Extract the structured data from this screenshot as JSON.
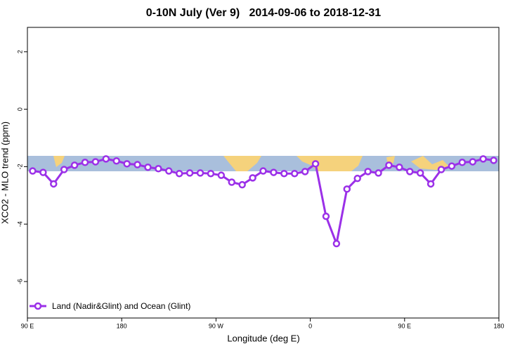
{
  "chart_data": {
    "type": "line",
    "title": "0-10N July (Ver 9)   2014-09-06 to 2018-12-31",
    "x_label": "Longitude (deg E)",
    "y_label": "XCO2 - MLO trend (ppm)",
    "x": [
      95,
      105,
      115,
      125,
      135,
      145,
      155,
      165,
      175,
      185,
      195,
      205,
      215,
      225,
      235,
      245,
      255,
      265,
      275,
      285,
      295,
      305,
      315,
      325,
      335,
      345,
      355,
      365,
      375,
      385,
      395,
      405,
      415,
      425,
      435,
      445,
      455,
      465,
      475,
      485,
      495,
      505,
      515,
      525,
      535
    ],
    "series": [
      {
        "name": "Land (Nadir&Glint) and Ocean (Glint)",
        "color": "#9b30e8",
        "values": [
          -2.15,
          -2.2,
          -2.6,
          -2.1,
          -1.95,
          -1.85,
          -1.83,
          -1.73,
          -1.8,
          -1.9,
          -1.93,
          -2.02,
          -2.07,
          -2.15,
          -2.24,
          -2.22,
          -2.22,
          -2.24,
          -2.3,
          -2.54,
          -2.63,
          -2.39,
          -2.15,
          -2.2,
          -2.24,
          -2.24,
          -2.17,
          -1.9,
          -3.73,
          -4.68,
          -2.78,
          -2.41,
          -2.17,
          -2.22,
          -1.95,
          -2.02,
          -2.17,
          -2.22,
          -2.6,
          -2.1,
          -1.98,
          -1.85,
          -1.83,
          -1.73,
          -1.78
        ]
      }
    ],
    "xlim": [
      90,
      540
    ],
    "xticks": [
      {
        "value": 90,
        "label": "90 E"
      },
      {
        "value": 180,
        "label": "180"
      },
      {
        "value": 270,
        "label": "90 W"
      },
      {
        "value": 360,
        "label": "0"
      },
      {
        "value": 450,
        "label": "90 E"
      },
      {
        "value": 540,
        "label": "180"
      }
    ],
    "ylim": [
      -7.27,
      2.85
    ],
    "yticks": [
      2,
      0,
      -2,
      -4,
      -6
    ],
    "legend": "bottom-left"
  }
}
